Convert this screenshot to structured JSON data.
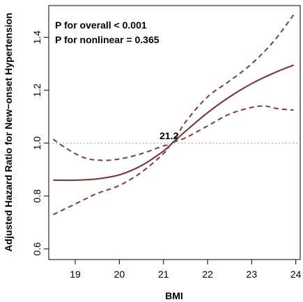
{
  "chart_data": {
    "type": "line",
    "xlabel": "BMI",
    "ylabel": "Adjusted Hazard Ratio for New−onset Hypertension",
    "xlim": [
      18.4,
      24.1
    ],
    "ylim": [
      0.56,
      1.52
    ],
    "x_ticks": [
      19,
      20,
      21,
      22,
      23,
      24
    ],
    "y_ticks": [
      0.6,
      0.8,
      1.0,
      1.2,
      1.4
    ],
    "x_tick_labels": [
      "19",
      "20",
      "21",
      "22",
      "23",
      "24"
    ],
    "y_tick_labels": [
      "0.6",
      "0.8",
      "1.0",
      "1.2",
      "1.4"
    ],
    "grid": false,
    "reference_line": {
      "y": 1.0,
      "style": "dotted",
      "color": "#999999"
    },
    "line_color": "#7b3b3f",
    "annotations": {
      "p_overall": "P for overall < 0.001",
      "p_nonlinear": "P for nonlinear = 0.365",
      "knot_label": "21.2",
      "knot_x": 21.2,
      "knot_y": 1.0
    },
    "series": [
      {
        "role": "estimate",
        "x": [
          18.5,
          19.0,
          19.5,
          20.0,
          20.5,
          21.0,
          21.2,
          21.5,
          22.0,
          22.5,
          23.0,
          23.5,
          23.95
        ],
        "y": [
          0.86,
          0.86,
          0.865,
          0.88,
          0.915,
          0.97,
          1.0,
          1.045,
          1.115,
          1.175,
          1.225,
          1.265,
          1.295
        ]
      },
      {
        "role": "upper_ci",
        "x": [
          18.5,
          18.8,
          19.2,
          19.6,
          20.0,
          20.5,
          21.0,
          21.2,
          21.5,
          22.0,
          22.5,
          23.0,
          23.5,
          23.95
        ],
        "y": [
          1.015,
          0.98,
          0.945,
          0.935,
          0.94,
          0.96,
          0.99,
          1.0,
          1.08,
          1.175,
          1.235,
          1.3,
          1.385,
          1.485
        ]
      },
      {
        "role": "lower_ci",
        "x": [
          18.5,
          19.0,
          19.5,
          20.0,
          20.5,
          21.0,
          21.2,
          21.5,
          22.0,
          22.5,
          23.0,
          23.3,
          23.6,
          23.95
        ],
        "y": [
          0.73,
          0.77,
          0.81,
          0.84,
          0.89,
          0.96,
          1.0,
          1.02,
          1.065,
          1.11,
          1.135,
          1.14,
          1.13,
          1.125
        ]
      }
    ]
  }
}
